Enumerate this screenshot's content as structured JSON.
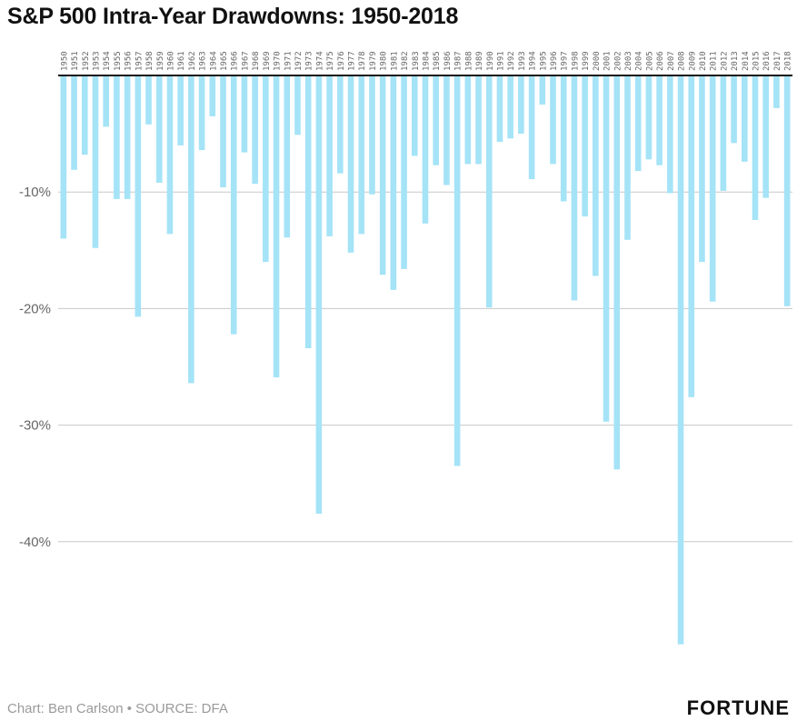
{
  "title": "S&P 500 Intra-Year Drawdowns: 1950-2018",
  "footer": {
    "source": "Chart: Ben Carlson • SOURCE: DFA",
    "brand": "FORTUNE"
  },
  "chart_data": {
    "type": "bar",
    "title": "S&P 500 Intra-Year Drawdowns: 1950-2018",
    "xlabel": "",
    "ylabel": "",
    "ylim": [
      -48,
      0
    ],
    "y_ticks": [
      -10,
      -20,
      -30,
      -40
    ],
    "y_tick_labels": [
      "-10%",
      "-20%",
      "-30%",
      "-40%"
    ],
    "grid": true,
    "bar_color": "#a5e3f7",
    "categories": [
      "1950",
      "1951",
      "1952",
      "1953",
      "1954",
      "1955",
      "1956",
      "1957",
      "1958",
      "1959",
      "1960",
      "1961",
      "1962",
      "1963",
      "1964",
      "1965",
      "1966",
      "1967",
      "1968",
      "1969",
      "1970",
      "1971",
      "1972",
      "1973",
      "1974",
      "1975",
      "1976",
      "1977",
      "1978",
      "1979",
      "1980",
      "1981",
      "1982",
      "1983",
      "1984",
      "1985",
      "1986",
      "1987",
      "1988",
      "1989",
      "1990",
      "1991",
      "1992",
      "1993",
      "1994",
      "1995",
      "1996",
      "1997",
      "1998",
      "1999",
      "2000",
      "2001",
      "2002",
      "2003",
      "2004",
      "2005",
      "2006",
      "2007",
      "2008",
      "2009",
      "2010",
      "2011",
      "2012",
      "2013",
      "2014",
      "2015",
      "2016",
      "2017",
      "2018"
    ],
    "values": [
      -14,
      -8.1,
      -6.8,
      -14.8,
      -4.4,
      -10.6,
      -10.6,
      -20.7,
      -4.2,
      -9.2,
      -13.6,
      -6.0,
      -26.4,
      -6.4,
      -3.5,
      -9.6,
      -22.2,
      -6.6,
      -9.3,
      -16.0,
      -25.9,
      -13.9,
      -5.1,
      -23.4,
      -37.6,
      -13.8,
      -8.4,
      -15.2,
      -13.6,
      -10.2,
      -17.1,
      -18.4,
      -16.6,
      -6.9,
      -12.7,
      -7.7,
      -9.4,
      -33.5,
      -7.6,
      -7.6,
      -19.9,
      -5.7,
      -5.4,
      -5.0,
      -8.9,
      -2.5,
      -7.6,
      -10.8,
      -19.3,
      -12.1,
      -17.2,
      -29.7,
      -33.8,
      -14.1,
      -8.2,
      -7.2,
      -7.7,
      -10.1,
      -48.8,
      -27.6,
      -16.0,
      -19.4,
      -9.9,
      -5.8,
      -7.4,
      -12.4,
      -10.5,
      -2.8,
      -19.8
    ]
  }
}
